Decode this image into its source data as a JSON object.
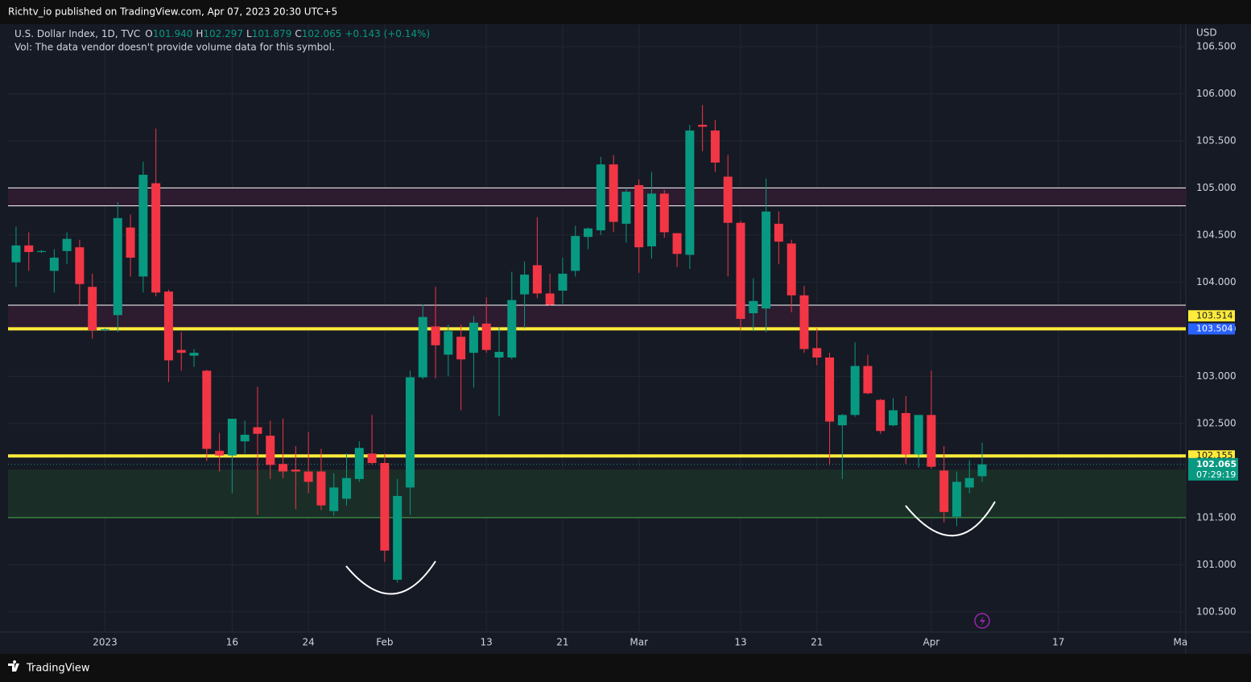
{
  "header": {
    "title": "Richtv_io published on TradingView.com, Apr 07, 2023 20:30 UTC+5"
  },
  "legend": {
    "symbol": "U.S. Dollar Index, 1D, TVC",
    "o_label": "O",
    "o": "101.940",
    "h_label": "H",
    "h": "102.297",
    "l_label": "L",
    "l": "101.879",
    "c_label": "C",
    "c": "102.065",
    "change": "+0.143 (+0.14%)",
    "volume_note": "Vol: The data vendor doesn't provide volume data for this symbol."
  },
  "footer": {
    "brand": "TradingView"
  },
  "chart_data": {
    "type": "candlestick",
    "currency": "USD",
    "up_color": "#089981",
    "down_color": "#f23645",
    "open": [
      104.21,
      104.39,
      104.32,
      104.12,
      104.33,
      104.37,
      103.95,
      103.49,
      103.65,
      104.58,
      104.06,
      105.05,
      103.9,
      103.28,
      103.22,
      103.06,
      102.21,
      102.16,
      102.31,
      102.46,
      102.37,
      102.07,
      102.01,
      101.99,
      101.99,
      101.57,
      101.7,
      101.91,
      102.18,
      102.08,
      100.84,
      101.82,
      102.99,
      103.53,
      103.23,
      103.42,
      103.25,
      103.56,
      103.2,
      103.2,
      103.87,
      104.18,
      103.88,
      103.91,
      104.12,
      104.48,
      104.55,
      105.25,
      104.62,
      105.03,
      104.38,
      104.94,
      104.52,
      104.29,
      105.67,
      105.61,
      105.12,
      104.63,
      103.67,
      103.72,
      104.62,
      104.41,
      103.86,
      103.3,
      103.2,
      102.48,
      102.59,
      103.11,
      102.75,
      102.48,
      102.61,
      102.17,
      102.59,
      102.0,
      101.51,
      101.82,
      101.94
    ],
    "high": [
      104.59,
      104.53,
      104.34,
      104.35,
      104.53,
      104.45,
      104.09,
      103.51,
      104.85,
      104.72,
      105.28,
      105.63,
      103.92,
      103.47,
      103.29,
      103.07,
      102.4,
      102.55,
      102.53,
      102.89,
      102.53,
      102.55,
      102.26,
      102.41,
      102.23,
      101.97,
      102.18,
      102.31,
      102.59,
      102.18,
      101.91,
      103.06,
      103.76,
      103.95,
      103.55,
      103.55,
      103.64,
      103.84,
      103.52,
      104.11,
      104.22,
      104.69,
      104.09,
      104.26,
      104.6,
      104.58,
      105.33,
      105.35,
      105.0,
      105.09,
      105.17,
      104.98,
      104.52,
      105.67,
      105.88,
      105.72,
      105.35,
      104.65,
      104.04,
      105.1,
      104.75,
      104.45,
      103.96,
      103.51,
      103.25,
      102.6,
      103.36,
      103.23,
      102.76,
      102.77,
      102.79,
      102.59,
      103.06,
      102.26,
      101.99,
      102.11,
      102.297
    ],
    "low": [
      103.95,
      104.12,
      104.31,
      103.89,
      104.19,
      103.76,
      103.4,
      103.48,
      103.47,
      104.06,
      103.89,
      103.85,
      102.94,
      103.06,
      103.1,
      102.1,
      101.99,
      101.76,
      102.18,
      101.53,
      101.91,
      101.92,
      101.59,
      101.76,
      101.58,
      101.52,
      101.63,
      101.88,
      102.06,
      101.03,
      100.81,
      101.53,
      102.97,
      102.98,
      103.0,
      102.64,
      102.88,
      103.25,
      102.58,
      103.18,
      103.51,
      103.83,
      103.75,
      103.77,
      104.06,
      104.35,
      104.5,
      104.53,
      104.42,
      104.1,
      104.25,
      104.47,
      104.16,
      104.14,
      105.39,
      105.17,
      104.06,
      103.49,
      103.48,
      103.47,
      104.19,
      103.68,
      103.25,
      103.12,
      102.06,
      101.91,
      102.57,
      102.81,
      102.39,
      102.47,
      102.07,
      102.03,
      102.02,
      101.45,
      101.41,
      101.76,
      101.879
    ],
    "close": [
      104.39,
      104.32,
      104.33,
      104.26,
      104.46,
      103.98,
      103.49,
      103.5,
      104.68,
      104.26,
      105.14,
      103.89,
      103.17,
      103.25,
      103.25,
      102.23,
      102.16,
      102.55,
      102.38,
      102.39,
      102.06,
      101.99,
      101.99,
      101.88,
      101.63,
      101.82,
      101.92,
      102.24,
      102.08,
      101.15,
      101.73,
      102.99,
      103.63,
      103.33,
      103.48,
      103.18,
      103.57,
      103.28,
      103.26,
      103.81,
      104.08,
      103.88,
      103.76,
      104.09,
      104.49,
      104.57,
      105.25,
      104.64,
      104.96,
      104.37,
      104.94,
      104.53,
      104.3,
      105.61,
      105.65,
      105.27,
      104.63,
      103.61,
      103.8,
      104.75,
      104.43,
      103.86,
      103.29,
      103.2,
      102.52,
      102.59,
      103.11,
      102.82,
      102.42,
      102.64,
      102.17,
      102.59,
      102.04,
      101.56,
      101.88,
      101.92,
      102.065
    ],
    "xlim": [
      -0.63,
      92.02
    ],
    "xticks": [
      {
        "value": 7,
        "label": "2023"
      },
      {
        "value": 17,
        "label": "16"
      },
      {
        "value": 23,
        "label": "24"
      },
      {
        "value": 29,
        "label": "Feb"
      },
      {
        "value": 37,
        "label": "13"
      },
      {
        "value": 43,
        "label": "21"
      },
      {
        "value": 49,
        "label": "Mar"
      },
      {
        "value": 57,
        "label": "13"
      },
      {
        "value": 63,
        "label": "21"
      },
      {
        "value": 72,
        "label": "Apr"
      },
      {
        "value": 82,
        "label": "17"
      },
      {
        "value": 91.6,
        "label": "Ma"
      }
    ],
    "ylim": [
      100.285,
      106.739
    ],
    "yticks": [
      {
        "value": 100.5,
        "label": "100.500"
      },
      {
        "value": 101,
        "label": "101.000"
      },
      {
        "value": 101.5,
        "label": "101.500"
      },
      {
        "value": 102,
        "label": "102.000"
      },
      {
        "value": 102.5,
        "label": "102.500"
      },
      {
        "value": 103,
        "label": "103.000"
      },
      {
        "value": 103.5,
        "label": "103.500"
      },
      {
        "value": 104,
        "label": "104.000"
      },
      {
        "value": 104.5,
        "label": "104.500"
      },
      {
        "value": 105,
        "label": "105.000"
      },
      {
        "value": 105.5,
        "label": "105.500"
      },
      {
        "value": 106,
        "label": "106.000"
      },
      {
        "value": 106.5,
        "label": "106.500"
      }
    ],
    "grid": true,
    "zones": [
      {
        "from": 104.81,
        "to": 105.0,
        "color": "#2d1b30"
      },
      {
        "from": 103.504,
        "to": 103.756,
        "color": "#2d1b30"
      },
      {
        "from": 101.5,
        "to": 102.01,
        "color": "#1a2e27"
      }
    ],
    "levels": [
      {
        "value": 105.0,
        "color": "#ffffff",
        "width": 1
      },
      {
        "value": 104.81,
        "color": "#ffffff",
        "width": 1
      },
      {
        "value": 103.756,
        "color": "#ffffff",
        "width": 1
      },
      {
        "value": 103.504,
        "color": "#ffeb3b",
        "width": 4
      },
      {
        "value": 102.155,
        "color": "#ffeb3b",
        "width": 4
      },
      {
        "value": 101.5,
        "color": "#4caf50",
        "width": 1
      }
    ],
    "price_tags": [
      {
        "value": 103.514,
        "color": "#ffeb3b",
        "text_color": "#131722"
      },
      {
        "value": 103.504,
        "color": "#2962ff",
        "text_color": "#ffffff"
      },
      {
        "value": 102.155,
        "color": "#ffeb3b",
        "text_color": "#131722"
      }
    ],
    "last_price": {
      "value": 102.065,
      "countdown": "07:29:19",
      "color": "#089981"
    }
  }
}
